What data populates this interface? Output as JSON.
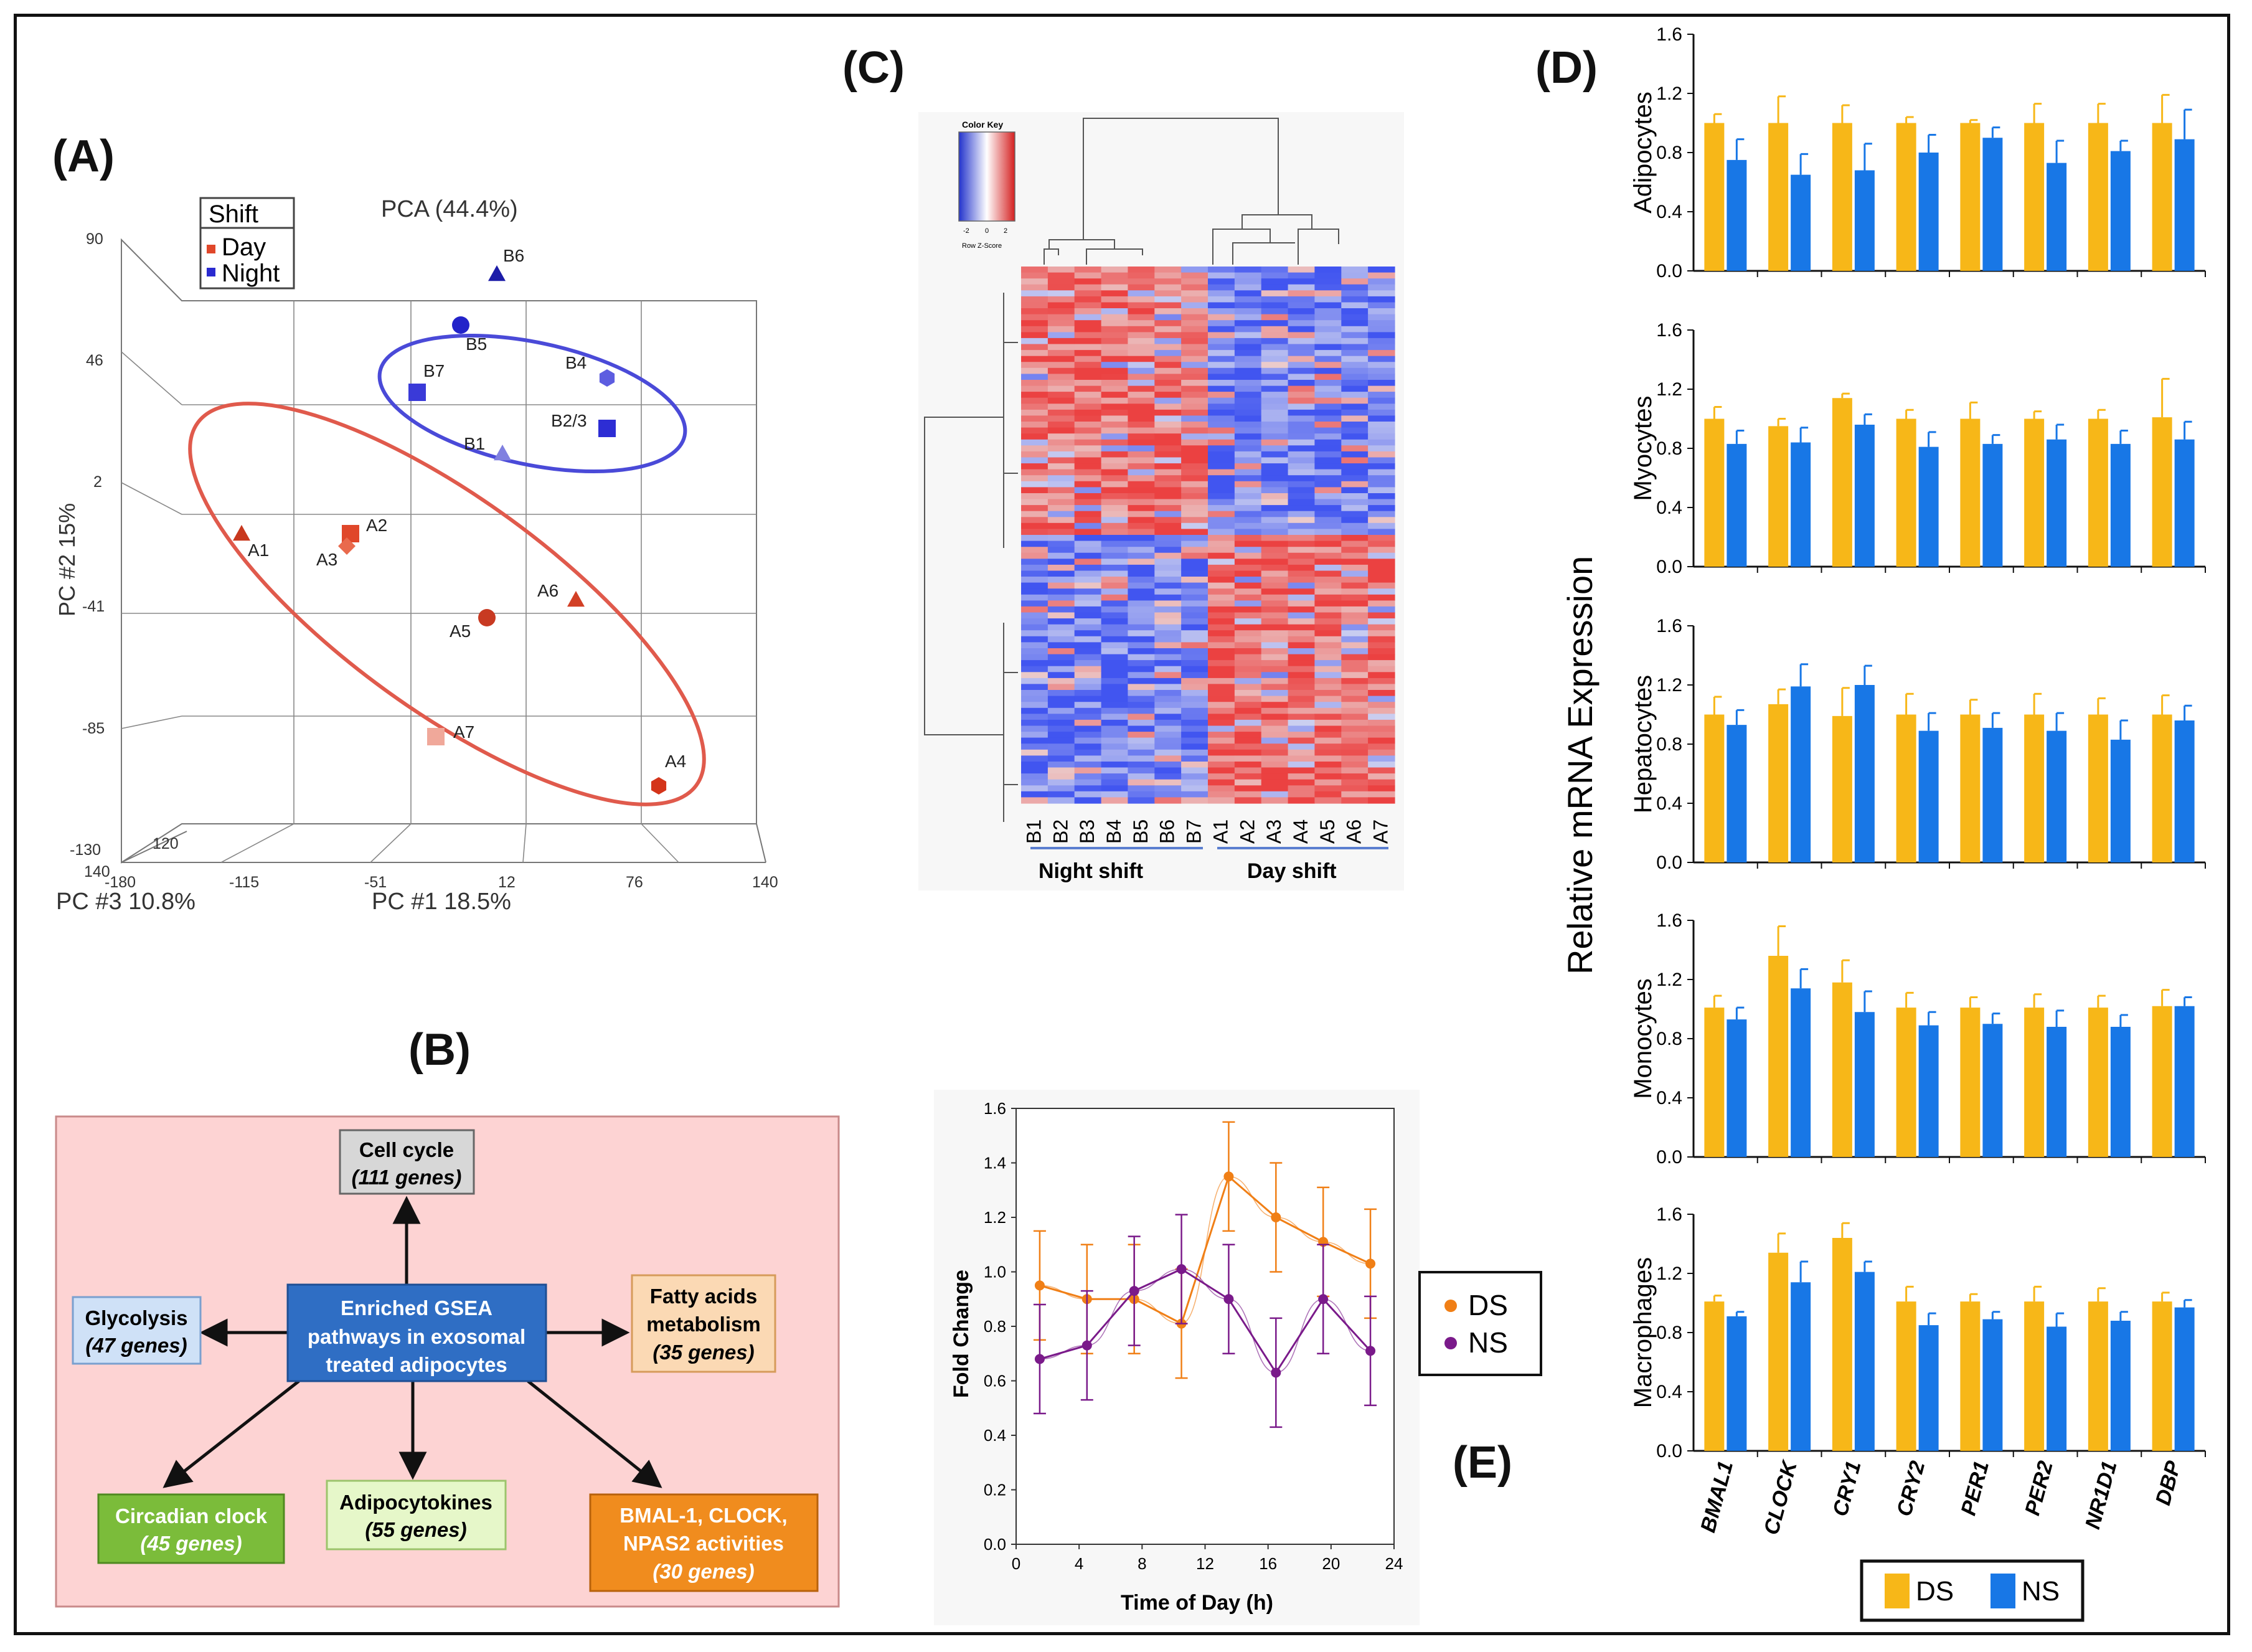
{
  "colors": {
    "day": "#e0472a",
    "night": "#2a2ad0",
    "ds": "#f7b718",
    "ns": "#1877e6",
    "ds_line": "#f07f16",
    "ns_line": "#7a1a8a",
    "pathway_box": "#fdd3d3"
  },
  "panels": {
    "a": "(A)",
    "b": "(B)",
    "c": "(C)",
    "d": "(D)",
    "e": "(E)"
  },
  "pca": {
    "title": "PCA (44.4%)",
    "legend_title": "Shift",
    "legend_items": [
      "Day",
      "Night"
    ],
    "pc1_label": "PC #1 18.5%",
    "pc2_label": "PC #2  15%",
    "pc3_label": "PC #3 10.8%",
    "y_ticks": [
      "90",
      "46",
      "2",
      "-41",
      "-85",
      "-130"
    ],
    "x_ticks": [
      "-180",
      "-115",
      "-51",
      "12",
      "76",
      "140"
    ],
    "z_ticks": [
      "140",
      "120"
    ],
    "points": [
      {
        "label": "B6",
        "group": "night",
        "shape": "triangle"
      },
      {
        "label": "B5",
        "group": "night",
        "shape": "circle"
      },
      {
        "label": "B4",
        "group": "night",
        "shape": "hexagon"
      },
      {
        "label": "B7",
        "group": "night",
        "shape": "square"
      },
      {
        "label": "B2/3",
        "group": "night",
        "shape": "square"
      },
      {
        "label": "B1",
        "group": "night",
        "shape": "triangle"
      },
      {
        "label": "A1",
        "group": "day",
        "shape": "triangle"
      },
      {
        "label": "A2",
        "group": "day",
        "shape": "square"
      },
      {
        "label": "A3",
        "group": "day",
        "shape": "diamond"
      },
      {
        "label": "A6",
        "group": "day",
        "shape": "triangle"
      },
      {
        "label": "A5",
        "group": "day",
        "shape": "circle"
      },
      {
        "label": "A7",
        "group": "day",
        "shape": "square"
      },
      {
        "label": "A4",
        "group": "day",
        "shape": "hexagon"
      }
    ]
  },
  "pathways": {
    "center": [
      "Enriched GSEA",
      "pathways in exosomal",
      "treated adipocytes"
    ],
    "nodes": [
      {
        "name": "Cell cycle",
        "genes": "(111 genes)"
      },
      {
        "name": "Glycolysis",
        "genes": "(47 genes)"
      },
      {
        "name": "Fatty acids\nmetabolism",
        "genes": "(35 genes)"
      },
      {
        "name": "Circadian clock",
        "genes": "(45 genes)"
      },
      {
        "name": "Adipocytokines",
        "genes": "(55 genes)"
      },
      {
        "name": "BMAL-1, CLOCK,\nNPAS2 activities",
        "genes": "(30 genes)"
      }
    ]
  },
  "heatmap": {
    "color_key_title": "Color Key",
    "color_key_ticks": [
      "-2",
      "0",
      "2"
    ],
    "color_key_sub": "Row Z-Score",
    "columns": [
      "B1",
      "B2",
      "B3",
      "B4",
      "B5",
      "B6",
      "B7",
      "A1",
      "A2",
      "A3",
      "A4",
      "A5",
      "A6",
      "A7"
    ],
    "groups": [
      "Night shift",
      "Day shift"
    ]
  },
  "chart_data": [
    {
      "type": "bar",
      "title": "Relative mRNA Expression",
      "categories": [
        "BMAL1",
        "CLOCK",
        "CRY1",
        "CRY2",
        "PER1",
        "PER2",
        "NR1D1",
        "DBP"
      ],
      "legend": [
        "DS",
        "NS"
      ],
      "ylim": [
        0,
        1.6
      ],
      "yticks": [
        "0.0",
        "0.4",
        "0.8",
        "1.2",
        "1.6"
      ],
      "panels": [
        {
          "ylabel": "Adipocytes",
          "ds": [
            1.0,
            1.0,
            1.0,
            1.0,
            1.0,
            1.0,
            1.0,
            1.0
          ],
          "ds_err": [
            0.06,
            0.18,
            0.12,
            0.04,
            0.02,
            0.13,
            0.13,
            0.19
          ],
          "ns": [
            0.75,
            0.65,
            0.68,
            0.8,
            0.9,
            0.73,
            0.81,
            0.89
          ],
          "ns_err": [
            0.14,
            0.14,
            0.18,
            0.12,
            0.07,
            0.15,
            0.07,
            0.2
          ]
        },
        {
          "ylabel": "Myocytes",
          "ds": [
            1.0,
            0.95,
            1.14,
            1.0,
            1.0,
            1.0,
            1.0,
            1.01
          ],
          "ds_err": [
            0.08,
            0.05,
            0.03,
            0.06,
            0.11,
            0.05,
            0.06,
            0.26
          ],
          "ns": [
            0.83,
            0.84,
            0.96,
            0.81,
            0.83,
            0.86,
            0.83,
            0.86
          ],
          "ns_err": [
            0.09,
            0.1,
            0.07,
            0.1,
            0.06,
            0.1,
            0.09,
            0.12
          ]
        },
        {
          "ylabel": "Hepatocytes",
          "ds": [
            1.0,
            1.07,
            0.99,
            1.0,
            1.0,
            1.0,
            1.0,
            1.0
          ],
          "ds_err": [
            0.12,
            0.1,
            0.19,
            0.14,
            0.1,
            0.14,
            0.11,
            0.13
          ],
          "ns": [
            0.93,
            1.19,
            1.2,
            0.89,
            0.91,
            0.89,
            0.83,
            0.96
          ],
          "ns_err": [
            0.1,
            0.15,
            0.13,
            0.12,
            0.1,
            0.12,
            0.13,
            0.1
          ]
        },
        {
          "ylabel": "Monocytes",
          "ds": [
            1.01,
            1.36,
            1.18,
            1.01,
            1.01,
            1.01,
            1.01,
            1.02
          ],
          "ds_err": [
            0.08,
            0.2,
            0.15,
            0.1,
            0.07,
            0.09,
            0.08,
            0.11
          ],
          "ns": [
            0.93,
            1.14,
            0.98,
            0.89,
            0.9,
            0.88,
            0.88,
            1.02
          ],
          "ns_err": [
            0.08,
            0.13,
            0.14,
            0.09,
            0.07,
            0.11,
            0.08,
            0.06
          ]
        },
        {
          "ylabel": "Macrophages",
          "ds": [
            1.01,
            1.34,
            1.44,
            1.01,
            1.01,
            1.01,
            1.01,
            1.01
          ],
          "ds_err": [
            0.04,
            0.13,
            0.1,
            0.1,
            0.05,
            0.1,
            0.09,
            0.06
          ],
          "ns": [
            0.91,
            1.14,
            1.21,
            0.85,
            0.89,
            0.84,
            0.88,
            0.97
          ],
          "ns_err": [
            0.03,
            0.14,
            0.07,
            0.08,
            0.05,
            0.09,
            0.06,
            0.05
          ]
        }
      ]
    },
    {
      "type": "line",
      "xlabel": "Time of Day (h)",
      "ylabel": "Fold Change",
      "xlim": [
        0,
        24
      ],
      "ylim": [
        0,
        1.6
      ],
      "xticks": [
        "0",
        "4",
        "8",
        "12",
        "16",
        "20",
        "24"
      ],
      "yticks": [
        "0.0",
        "0.2",
        "0.4",
        "0.6",
        "0.8",
        "1.0",
        "1.2",
        "1.4",
        "1.6"
      ],
      "x": [
        1.5,
        4.5,
        7.5,
        10.5,
        13.5,
        16.5,
        19.5,
        22.5
      ],
      "series": [
        {
          "name": "DS",
          "values": [
            0.95,
            0.9,
            0.9,
            0.81,
            1.35,
            1.2,
            1.11,
            1.03
          ],
          "err": [
            0.2,
            0.2,
            0.2,
            0.2,
            0.2,
            0.2,
            0.2,
            0.2
          ]
        },
        {
          "name": "NS",
          "values": [
            0.68,
            0.73,
            0.93,
            1.01,
            0.9,
            0.63,
            0.9,
            0.71
          ],
          "err": [
            0.2,
            0.2,
            0.2,
            0.2,
            0.2,
            0.2,
            0.2,
            0.2
          ]
        }
      ]
    }
  ]
}
